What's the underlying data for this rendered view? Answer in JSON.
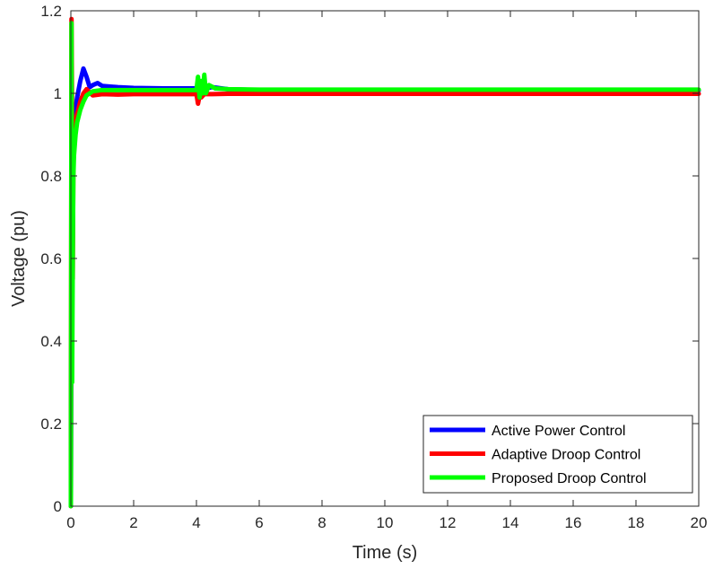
{
  "chart_data": {
    "type": "line",
    "xlabel": "Time (s)",
    "ylabel": "Voltage (pu)",
    "xlim": [
      0,
      20
    ],
    "ylim": [
      0,
      1.2
    ],
    "xticks": [
      0,
      2,
      4,
      6,
      8,
      10,
      12,
      14,
      16,
      18,
      20
    ],
    "yticks": [
      0,
      0.2,
      0.4,
      0.6,
      0.8,
      1,
      1.2
    ],
    "xtick_labels": [
      "0",
      "2",
      "4",
      "6",
      "8",
      "10",
      "12",
      "14",
      "16",
      "18",
      "20"
    ],
    "ytick_labels": [
      "0",
      "0.2",
      "0.4",
      "0.6",
      "0.8",
      "1",
      "1.2"
    ],
    "grid": false,
    "legend_position": "bottom-right",
    "series": [
      {
        "name": "Active Power Control",
        "color": "#0000ff",
        "x": [
          0,
          0.03,
          0.05,
          0.08,
          0.12,
          0.2,
          0.3,
          0.4,
          0.5,
          0.6,
          0.7,
          0.85,
          1.0,
          1.5,
          2.0,
          3.0,
          4.0,
          4.05,
          4.1,
          4.15,
          4.2,
          4.3,
          4.5,
          4.8,
          5.0,
          6.0,
          8.0,
          10.0,
          14.0,
          20.0
        ],
        "y": [
          0,
          0.9,
          0.7,
          0.92,
          0.95,
          0.99,
          1.03,
          1.06,
          1.04,
          1.015,
          1.02,
          1.025,
          1.018,
          1.015,
          1.013,
          1.012,
          1.012,
          0.995,
          1.02,
          1.005,
          1.015,
          1.012,
          1.015,
          1.012,
          1.01,
          1.008,
          1.007,
          1.007,
          1.007,
          1.007
        ]
      },
      {
        "name": "Adaptive Droop Control",
        "color": "#ff0000",
        "x": [
          0,
          0.02,
          0.04,
          0.06,
          0.08,
          0.1,
          0.15,
          0.2,
          0.3,
          0.4,
          0.5,
          0.7,
          1.0,
          1.5,
          2.0,
          3.0,
          4.0,
          4.05,
          4.1,
          4.15,
          4.25,
          4.5,
          5.0,
          6.0,
          8.0,
          10.0,
          14.0,
          20.0
        ],
        "y": [
          0,
          1.18,
          0.95,
          0.55,
          0.85,
          0.9,
          0.93,
          0.95,
          0.98,
          1.0,
          1.01,
          0.995,
          0.998,
          0.997,
          0.998,
          0.998,
          0.998,
          0.975,
          0.995,
          0.99,
          0.998,
          0.998,
          0.999,
          0.999,
          0.999,
          0.999,
          0.999,
          0.999
        ]
      },
      {
        "name": "Proposed Droop Control",
        "color": "#00ff00",
        "x": [
          0,
          0.02,
          0.04,
          0.06,
          0.08,
          0.1,
          0.15,
          0.2,
          0.3,
          0.4,
          0.5,
          0.7,
          1.0,
          1.5,
          2.0,
          3.0,
          4.0,
          4.05,
          4.1,
          4.15,
          4.2,
          4.25,
          4.3,
          4.4,
          4.6,
          5.0,
          6.0,
          8.0,
          10.0,
          14.0,
          20.0
        ],
        "y": [
          0,
          1.17,
          0.3,
          0.6,
          0.8,
          0.85,
          0.9,
          0.93,
          0.96,
          0.98,
          0.995,
          1.005,
          1.008,
          1.008,
          1.008,
          1.008,
          1.008,
          1.04,
          0.99,
          1.03,
          1.0,
          1.045,
          1.0,
          1.02,
          1.012,
          1.01,
          1.009,
          1.009,
          1.009,
          1.009,
          1.009
        ]
      }
    ]
  }
}
